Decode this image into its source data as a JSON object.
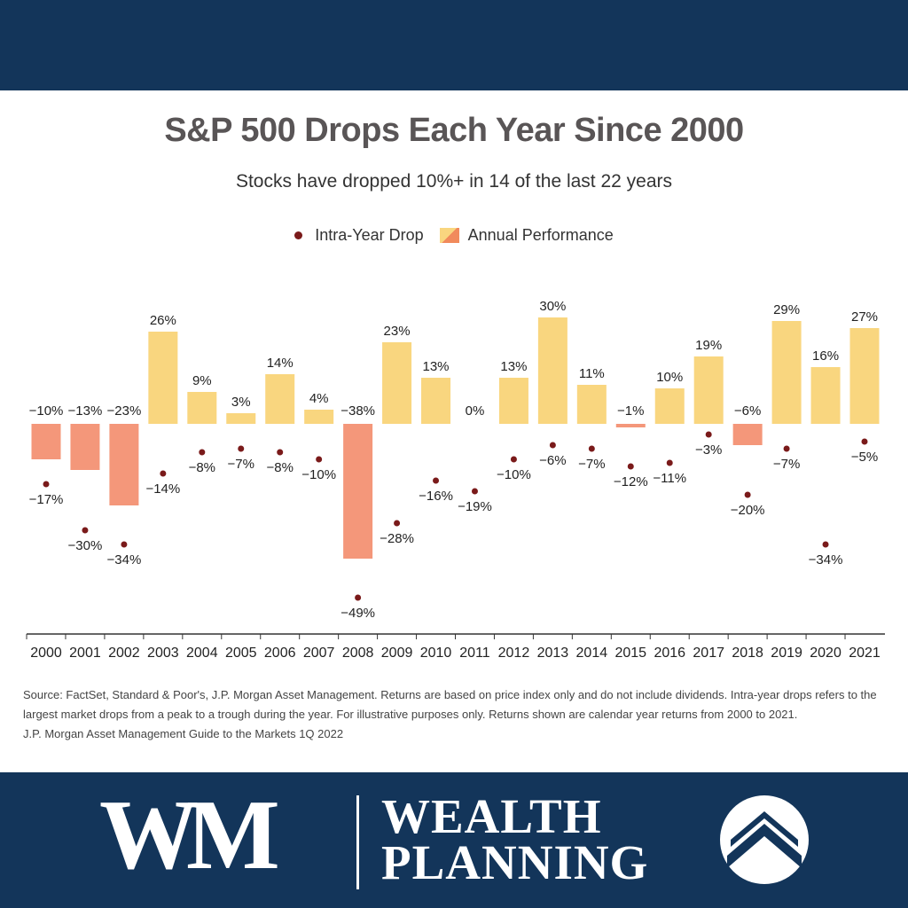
{
  "header": {
    "title": "S&P 500 Drops Each Year Since 2000",
    "subtitle": "Stocks have dropped 10%+ in 14 of the last 22 years"
  },
  "legend": {
    "drop_label": "Intra-Year Drop",
    "annual_label": "Annual Performance"
  },
  "chart_data": {
    "type": "bar",
    "title": "S&P 500 Drops Each Year Since 2000",
    "subtitle": "Stocks have dropped 10%+ in 14 of the last 22 years",
    "categories": [
      "2000",
      "2001",
      "2002",
      "2003",
      "2004",
      "2005",
      "2006",
      "2007",
      "2008",
      "2009",
      "2010",
      "2011",
      "2012",
      "2013",
      "2014",
      "2015",
      "2016",
      "2017",
      "2018",
      "2019",
      "2020",
      "2021"
    ],
    "series": [
      {
        "name": "Annual Performance",
        "kind": "bar",
        "values": [
          -10,
          -13,
          -23,
          26,
          9,
          3,
          14,
          4,
          -38,
          23,
          13,
          0,
          13,
          30,
          11,
          -1,
          10,
          19,
          -6,
          29,
          16,
          27
        ]
      },
      {
        "name": "Intra-Year Drop",
        "kind": "point",
        "values": [
          -17,
          -30,
          -34,
          -14,
          -8,
          -7,
          -8,
          -10,
          -49,
          -28,
          -16,
          -19,
          -10,
          -6,
          -7,
          -12,
          -11,
          -3,
          -20,
          -7,
          -34,
          -5
        ]
      }
    ],
    "value_suffix": "%",
    "legend": "top-center",
    "grid": false,
    "colors": {
      "positive_bar": "#f9d67f",
      "negative_bar": "#f4977a",
      "drop_point": "#7a1a1a"
    }
  },
  "source": {
    "line1": "Source: FactSet, Standard & Poor's, J.P. Morgan Asset Management. Returns are based on price index only and do not include dividends. Intra-year drops refers to the largest market drops from a peak to a trough during the year. For illustrative purposes only. Returns shown are calendar year returns from 2000 to 2021.",
    "line2": "J.P. Morgan Asset Management Guide to the Markets 1Q 2022"
  },
  "footer": {
    "logo_mark": "WM",
    "brand_line1": "WEALTH",
    "brand_line2": "PLANNING",
    "band_color": "#13355a"
  }
}
